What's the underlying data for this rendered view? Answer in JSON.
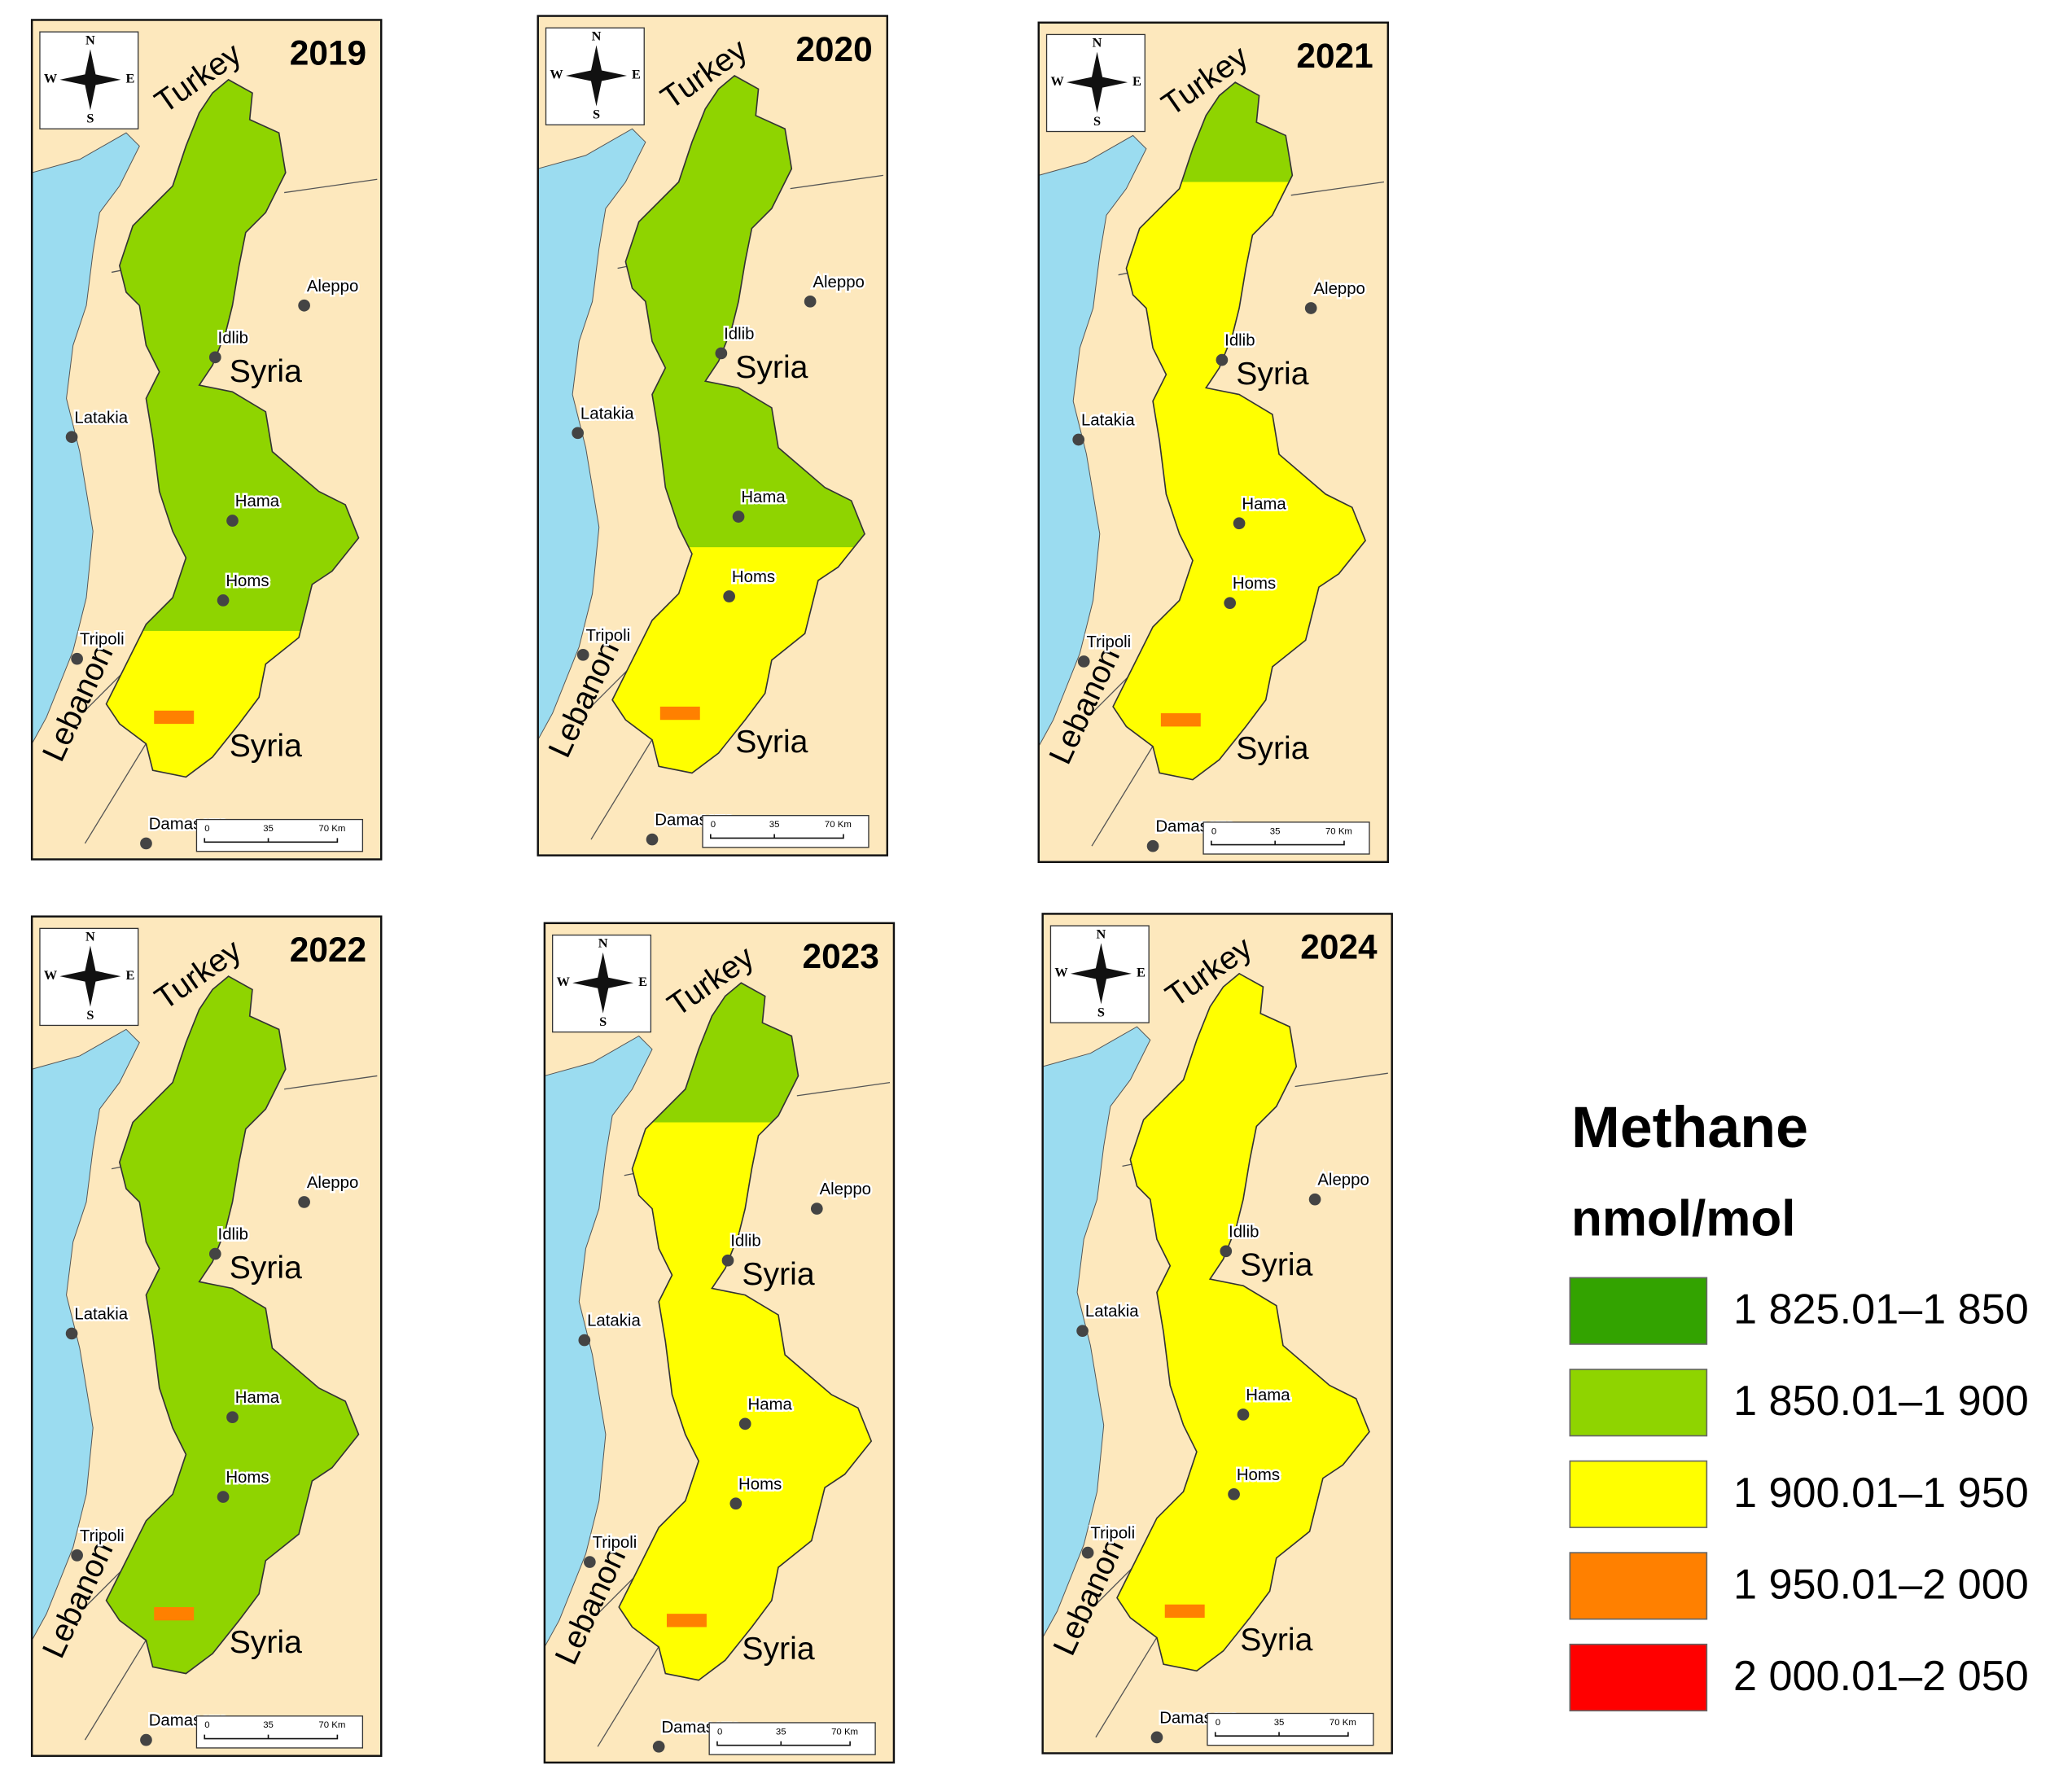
{
  "panels": [
    {
      "year": "2019",
      "countries": [
        "Turkey",
        "Syria",
        "Syria",
        "Lebanon"
      ],
      "cities": [
        "Aleppo",
        "Idlib",
        "Latakia",
        "Hama",
        "Homs",
        "Tripoli",
        "Damascus"
      ],
      "compass": [
        "N",
        "S",
        "W",
        "E"
      ],
      "scale": [
        "0",
        "35",
        "70 Km"
      ]
    },
    {
      "year": "2020",
      "countries": [
        "Turkey",
        "Syria",
        "Syria",
        "Lebanon"
      ],
      "cities": [
        "Aleppo",
        "Idlib",
        "Latakia",
        "Hama",
        "Homs",
        "Tripoli",
        "Damascus"
      ],
      "compass": [
        "N",
        "S",
        "W",
        "E"
      ],
      "scale": [
        "0",
        "35",
        "70 Km"
      ]
    },
    {
      "year": "2021",
      "countries": [
        "Turkey",
        "Syria",
        "Syria",
        "Lebanon"
      ],
      "cities": [
        "Aleppo",
        "Idlib",
        "Latakia",
        "Hama",
        "Homs",
        "Tripoli",
        "Damascus"
      ],
      "compass": [
        "N",
        "S",
        "W",
        "E"
      ],
      "scale": [
        "0",
        "35",
        "70 Km"
      ]
    },
    {
      "year": "2022",
      "countries": [
        "Turkey",
        "Syria",
        "Syria",
        "Lebanon"
      ],
      "cities": [
        "Aleppo",
        "Idlib",
        "Latakia",
        "Hama",
        "Homs",
        "Tripoli",
        "Damascus"
      ],
      "compass": [
        "N",
        "S",
        "W",
        "E"
      ],
      "scale": [
        "0",
        "35",
        "70 Km"
      ]
    },
    {
      "year": "2023",
      "countries": [
        "Turkey",
        "Syria",
        "Syria",
        "Lebanon"
      ],
      "cities": [
        "Aleppo",
        "Idlib",
        "Latakia",
        "Hama",
        "Homs",
        "Tripoli",
        "Damascus"
      ],
      "compass": [
        "N",
        "S",
        "W",
        "E"
      ],
      "scale": [
        "0",
        "35",
        "70 Km"
      ]
    },
    {
      "year": "2024",
      "countries": [
        "Turkey",
        "Syria",
        "Syria",
        "Lebanon"
      ],
      "cities": [
        "Aleppo",
        "Idlib",
        "Latakia",
        "Hama",
        "Homs",
        "Tripoli",
        "Damascus"
      ],
      "compass": [
        "N",
        "S",
        "W",
        "E"
      ],
      "scale": [
        "0",
        "35",
        "70 Km"
      ]
    }
  ],
  "legend": {
    "title": "Methane",
    "unit": "nmol/mol",
    "items": [
      {
        "label": "1 825.01–1 850",
        "color": "#33a300"
      },
      {
        "label": "1 850.01–1 900",
        "color": "#8fd400"
      },
      {
        "label": "1 900.01–1 950",
        "color": "#ffff00"
      },
      {
        "label": "1 950.01–2 000",
        "color": "#ff8000"
      },
      {
        "label": "2 000.01–2 050",
        "color": "#ff0000"
      }
    ]
  }
}
